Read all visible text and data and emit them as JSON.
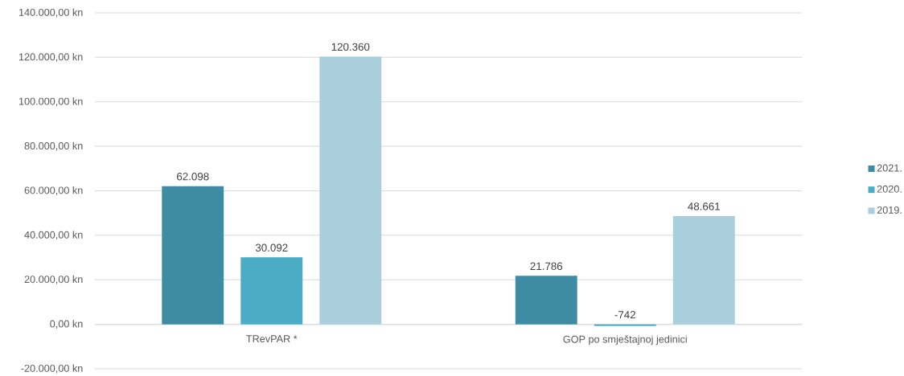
{
  "chart_data": {
    "type": "bar",
    "categories": [
      "TRevPAR *",
      "GOP po smještajnoj jedinici"
    ],
    "series": [
      {
        "name": "2021.",
        "color": "#3d8ca3",
        "values": [
          62098,
          21786
        ],
        "value_labels": [
          "62.098",
          "21.786"
        ]
      },
      {
        "name": "2020.",
        "color": "#4bacc6",
        "values": [
          30092,
          -742
        ],
        "value_labels": [
          "30.092",
          "-742"
        ]
      },
      {
        "name": "2019.",
        "color": "#a9cedc",
        "values": [
          120360,
          48661
        ],
        "value_labels": [
          "120.360",
          "48.661"
        ]
      }
    ],
    "ylim": [
      -20000,
      140000
    ],
    "yticks": [
      {
        "value": -20000,
        "label": "-20.000,00 kn"
      },
      {
        "value": 0,
        "label": "0,00 kn"
      },
      {
        "value": 20000,
        "label": "20.000,00 kn"
      },
      {
        "value": 40000,
        "label": "40.000,00 kn"
      },
      {
        "value": 60000,
        "label": "60.000,00 kn"
      },
      {
        "value": 80000,
        "label": "80.000,00 kn"
      },
      {
        "value": 100000,
        "label": "100.000,00 kn"
      },
      {
        "value": 120000,
        "label": "120.000,00 kn"
      },
      {
        "value": 140000,
        "label": "140.000,00 kn"
      }
    ],
    "grid": "y",
    "legend": "right"
  }
}
